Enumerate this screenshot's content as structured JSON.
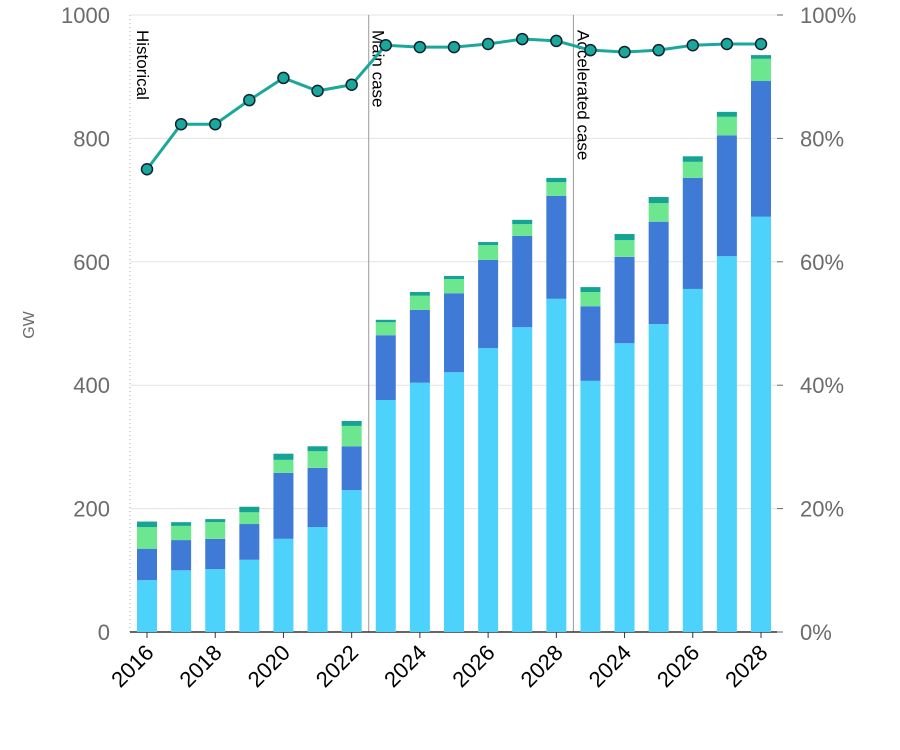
{
  "chart_data": {
    "type": "bar",
    "stacked": true,
    "y_label": "GW",
    "annotations": [
      "Historical",
      "Main case",
      "Accelerated case"
    ],
    "categories": [
      "2016",
      null,
      "2018",
      null,
      "2020",
      null,
      "2022",
      null,
      "2024",
      null,
      "2026",
      null,
      "2028",
      null,
      "2024",
      null,
      "2026",
      null,
      "2028"
    ],
    "series": [
      {
        "color": "#4dd2fc",
        "values": [
          84,
          100,
          102,
          117,
          151,
          170,
          230,
          376,
          404,
          421,
          460,
          494,
          540,
          407,
          468,
          499,
          556,
          609,
          673
        ]
      },
      {
        "color": "#3f7bd6",
        "values": [
          51,
          49,
          49,
          58,
          107,
          96,
          71,
          105,
          118,
          128,
          143,
          148,
          167,
          121,
          140,
          166,
          180,
          196,
          220
        ]
      },
      {
        "color": "#6de78f",
        "values": [
          35,
          23,
          27,
          19,
          21,
          27,
          33,
          21,
          23,
          23,
          24,
          19,
          22,
          23,
          27,
          30,
          26,
          30,
          36
        ]
      },
      {
        "color": "#15a394",
        "values": [
          9,
          6,
          5,
          9,
          10,
          8,
          8,
          4,
          6,
          5,
          5,
          7,
          7,
          8,
          10,
          10,
          9,
          8,
          6
        ]
      },
      {
        "type": "line",
        "axis": "y2",
        "color": "#1aa89a",
        "values": [
          75,
          82.3,
          82.3,
          86.2,
          89.8,
          87.7,
          88.7,
          95.1,
          94.8,
          94.8,
          95.3,
          96.1,
          95.8,
          94.3,
          94.0,
          94.3,
          95.1,
          95.3,
          95.3
        ]
      }
    ],
    "ylim": [
      0,
      1000
    ],
    "yticks": [
      0,
      200,
      400,
      600,
      800,
      1000
    ],
    "y2lim": [
      0,
      100
    ],
    "y2ticks": [
      {
        "value": 0,
        "label": "0%"
      },
      {
        "value": 20,
        "label": "20%"
      },
      {
        "value": 40,
        "label": "40%"
      },
      {
        "value": 60,
        "label": "60%"
      },
      {
        "value": 80,
        "label": "80%"
      },
      {
        "value": 100,
        "label": "100%"
      }
    ],
    "grid": true
  }
}
